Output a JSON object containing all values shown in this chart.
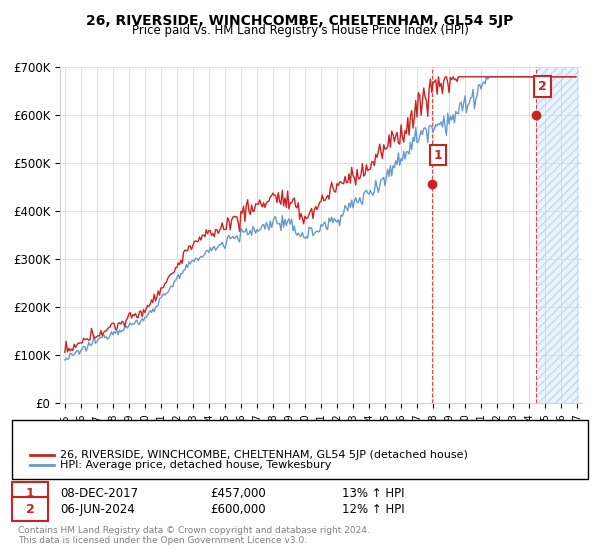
{
  "title": "26, RIVERSIDE, WINCHCOMBE, CHELTENHAM, GL54 5JP",
  "subtitle": "Price paid vs. HM Land Registry's House Price Index (HPI)",
  "legend_line1": "26, RIVERSIDE, WINCHCOMBE, CHELTENHAM, GL54 5JP (detached house)",
  "legend_line2": "HPI: Average price, detached house, Tewkesbury",
  "annotation1_label": "1",
  "annotation1_date": "08-DEC-2017",
  "annotation1_price": "£457,000",
  "annotation1_hpi": "13% ↑ HPI",
  "annotation2_label": "2",
  "annotation2_date": "06-JUN-2024",
  "annotation2_price": "£600,000",
  "annotation2_hpi": "12% ↑ HPI",
  "footnote1": "Contains HM Land Registry data © Crown copyright and database right 2024.",
  "footnote2": "This data is licensed under the Open Government Licence v3.0.",
  "hpi_color": "#6699cc",
  "price_color": "#cc2222",
  "vline_color": "#cc2222",
  "annotation_box_edge_color": "#cc2222",
  "annotation_box_face_color": "white",
  "annotation_text_color": "#cc2222",
  "dot_color": "#cc2222",
  "background_shade_color": "#ddeeff",
  "hatch_color": "#aabbdd",
  "ylim": [
    0,
    700000
  ],
  "yticks": [
    0,
    100000,
    200000,
    300000,
    400000,
    500000,
    600000,
    700000
  ],
  "ytick_labels": [
    "£0",
    "£100K",
    "£200K",
    "£300K",
    "£400K",
    "£500K",
    "£600K",
    "£700K"
  ],
  "year_start": 1995,
  "year_end": 2027,
  "sale1_year": 2017.92,
  "sale2_year": 2024.44,
  "sale1_value": 457000,
  "sale2_value": 600000
}
